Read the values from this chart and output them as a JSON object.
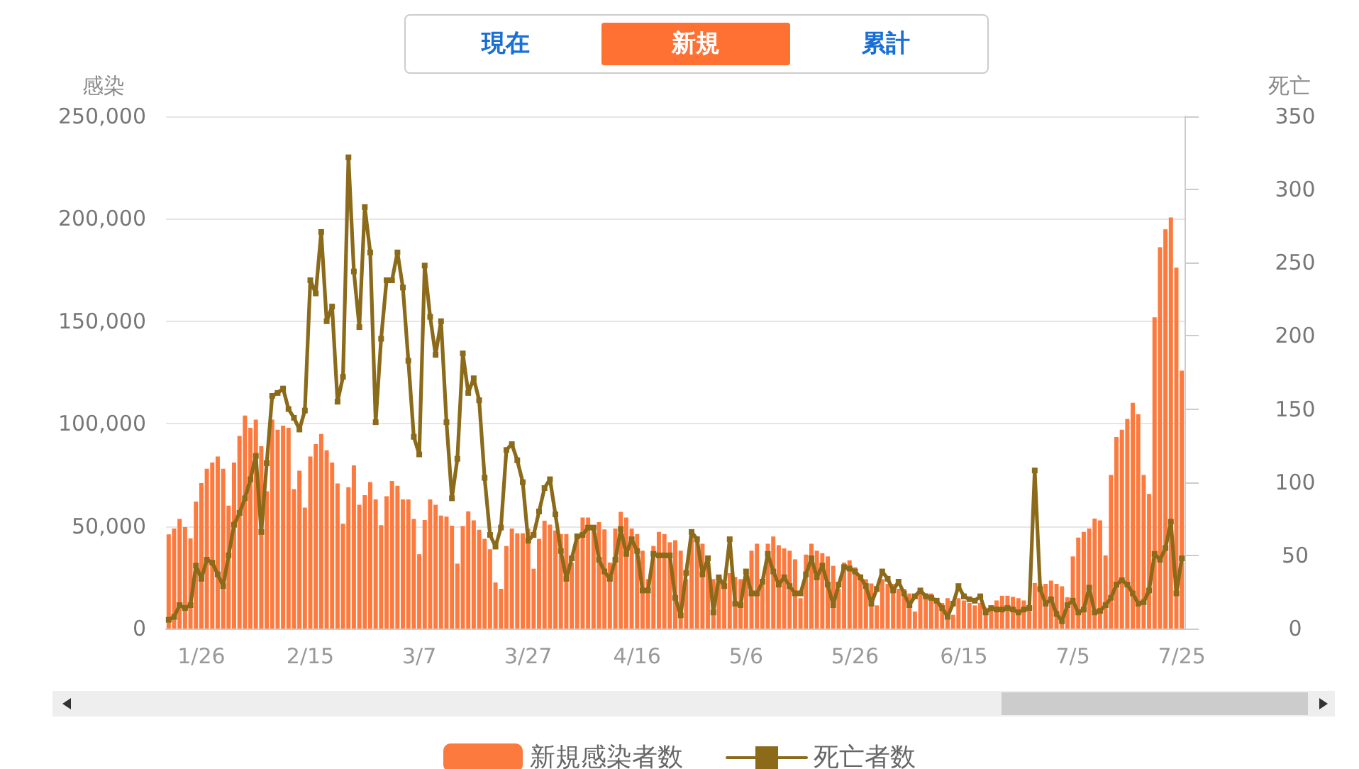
{
  "chart_data": {
    "type": "bar",
    "categories": [
      null,
      null,
      null,
      null,
      null,
      null,
      "1/26",
      null,
      null,
      null,
      null,
      null,
      null,
      null,
      null,
      null,
      null,
      null,
      null,
      null,
      null,
      null,
      null,
      null,
      null,
      null,
      "2/15",
      null,
      null,
      null,
      null,
      null,
      null,
      null,
      null,
      null,
      null,
      null,
      null,
      null,
      null,
      null,
      null,
      null,
      null,
      null,
      "3/7",
      null,
      null,
      null,
      null,
      null,
      null,
      null,
      null,
      null,
      null,
      null,
      null,
      null,
      null,
      null,
      null,
      null,
      null,
      null,
      "3/27",
      null,
      null,
      null,
      null,
      null,
      null,
      null,
      null,
      null,
      null,
      null,
      null,
      null,
      null,
      null,
      null,
      null,
      null,
      null,
      "4/16",
      null,
      null,
      null,
      null,
      null,
      null,
      null,
      null,
      null,
      null,
      null,
      null,
      null,
      null,
      null,
      null,
      null,
      null,
      null,
      "5/6",
      null,
      null,
      null,
      null,
      null,
      null,
      null,
      null,
      null,
      null,
      null,
      null,
      null,
      null,
      null,
      null,
      null,
      null,
      null,
      "5/26",
      null,
      null,
      null,
      null,
      null,
      null,
      null,
      null,
      null,
      null,
      null,
      null,
      null,
      null,
      null,
      null,
      null,
      null,
      null,
      "6/15",
      null,
      null,
      null,
      null,
      null,
      null,
      null,
      null,
      null,
      null,
      null,
      null,
      null,
      null,
      null,
      null,
      null,
      null,
      null,
      "7/5",
      null,
      null,
      null,
      null,
      null,
      null,
      null,
      null,
      null,
      null,
      null,
      null,
      null,
      null,
      null,
      null,
      null,
      null,
      null,
      "7/25"
    ],
    "series": [
      {
        "name": "新規感染者数",
        "color": "#fd7a3e",
        "values": [
          46000,
          48800,
          53500,
          49500,
          44000,
          62000,
          71000,
          78000,
          81000,
          84000,
          78000,
          60000,
          81000,
          94000,
          104000,
          98000,
          102000,
          89000,
          67000,
          102000,
          97000,
          99000,
          98000,
          68000,
          77000,
          59000,
          84000,
          90000,
          95000,
          87000,
          81000,
          70800,
          51200,
          69000,
          79600,
          60400,
          65100,
          71500,
          63000,
          50500,
          64600,
          72000,
          69700,
          63000,
          63000,
          53500,
          36300,
          53000,
          63000,
          60400,
          55100,
          54600,
          50200,
          31700,
          50000,
          57200,
          52800,
          48200,
          43800,
          38700,
          22500,
          19400,
          40300,
          48800,
          46500,
          46500,
          48800,
          29200,
          43800,
          52600,
          50700,
          47900,
          46100,
          46100,
          32200,
          46100,
          54200,
          54200,
          50200,
          51900,
          48400,
          32200,
          48800,
          57000,
          54200,
          48800,
          46100,
          38000,
          24100,
          40300,
          47200,
          46100,
          42100,
          43100,
          38000,
          24100,
          46100,
          44900,
          41400,
          35700,
          24100,
          25200,
          19400,
          27000,
          25200,
          24100,
          27500,
          38000,
          41400,
          21800,
          41400,
          44900,
          40700,
          39100,
          38000,
          33800,
          14800,
          36100,
          41400,
          38000,
          36800,
          35200,
          30600,
          19400,
          32200,
          33300,
          29900,
          26400,
          24100,
          22000,
          11300,
          24100,
          21800,
          21800,
          19400,
          19400,
          17100,
          8300,
          18300,
          17100,
          17100,
          13700,
          12500,
          14800,
          6700,
          14800,
          13700,
          12500,
          11300,
          12500,
          10200,
          9000,
          13700,
          16000,
          16000,
          15500,
          14800,
          13700,
          10000,
          22200,
          21800,
          21800,
          23400,
          21800,
          20600,
          15300,
          35200,
          44400,
          47200,
          48800,
          53700,
          52800,
          35700,
          75000,
          93500,
          97000,
          102300,
          110200,
          104600,
          75000,
          65700,
          151900,
          186100,
          194900,
          200700,
          176200,
          125900
        ]
      },
      {
        "name": "死亡者数",
        "type": "line",
        "axis": "y2",
        "color": "#8b6a1a",
        "values": [
          6,
          8,
          16,
          14,
          16,
          43,
          34,
          47,
          45,
          37,
          29,
          50,
          71,
          79,
          89,
          102,
          118,
          66,
          113,
          159,
          161,
          164,
          150,
          144,
          136,
          149,
          238,
          229,
          271,
          210,
          220,
          155,
          172,
          322,
          244,
          206,
          288,
          257,
          141,
          198,
          238,
          238,
          257,
          233,
          183,
          131,
          119,
          248,
          213,
          187,
          210,
          141,
          89,
          116,
          188,
          161,
          171,
          156,
          103,
          64,
          56,
          69,
          122,
          126,
          115,
          100,
          60,
          64,
          80,
          96,
          102,
          78,
          53,
          34,
          48,
          63,
          64,
          69,
          69,
          47,
          39,
          34,
          47,
          68,
          51,
          61,
          53,
          26,
          26,
          51,
          50,
          50,
          50,
          21,
          9,
          38,
          66,
          61,
          37,
          48,
          11,
          35,
          29,
          61,
          17,
          16,
          39,
          24,
          24,
          32,
          51,
          39,
          30,
          35,
          29,
          24,
          24,
          37,
          48,
          35,
          43,
          30,
          16,
          30,
          42,
          41,
          39,
          35,
          29,
          17,
          27,
          39,
          34,
          26,
          32,
          24,
          16,
          22,
          26,
          22,
          21,
          19,
          14,
          8,
          17,
          29,
          22,
          20,
          19,
          22,
          11,
          14,
          13,
          13,
          14,
          13,
          11,
          13,
          14,
          108,
          27,
          17,
          20,
          10,
          5,
          16,
          19,
          11,
          13,
          28,
          11,
          12,
          16,
          21,
          30,
          33,
          30,
          24,
          17,
          18,
          26,
          51,
          47,
          55,
          73,
          24,
          48
        ]
      }
    ],
    "ylabel": "感染",
    "y2label": "死亡",
    "ylim": [
      0,
      250000
    ],
    "yticks": [
      0,
      {
        "value": 50000,
        "label": "50,000"
      },
      {
        "value": 100000,
        "label": "100,000"
      },
      {
        "value": 150000,
        "label": "150,000"
      },
      {
        "value": 200000,
        "label": "200,000"
      },
      {
        "value": 250000,
        "label": "250,000"
      }
    ],
    "y2lim": [
      0,
      350
    ],
    "y2ticks": [
      0,
      50,
      100,
      150,
      200,
      250,
      300,
      350
    ],
    "grid": "y",
    "legend": "bottom",
    "marker": "square",
    "annotations": [
      "現在",
      "新規",
      "累計"
    ]
  }
}
